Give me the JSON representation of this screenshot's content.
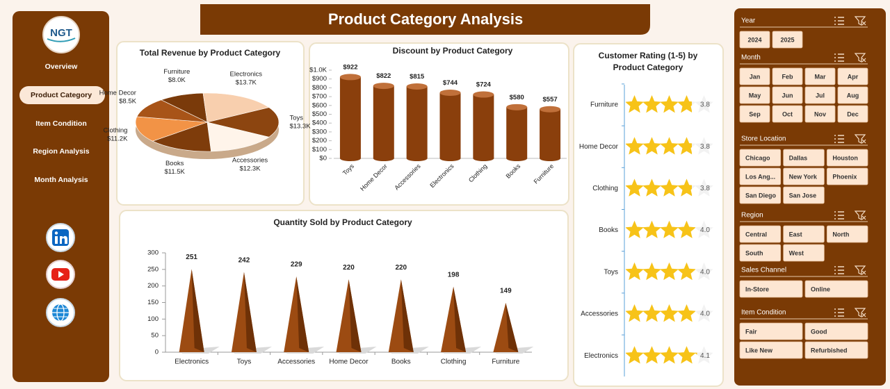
{
  "logo": "NGT",
  "nav": [
    "Overview",
    "Product Category",
    "Item Condition",
    "Region Analysis",
    "Month Analysis"
  ],
  "header": {
    "title": "Product Category Analysis"
  },
  "chart_data": [
    {
      "type": "pie",
      "title": "Total Revenue by Product Category",
      "categories": [
        "Furniture",
        "Electronics",
        "Toys",
        "Accessories",
        "Books",
        "Clothing",
        "Home Decor"
      ],
      "values": [
        8000,
        13700,
        13300,
        12300,
        11500,
        11200,
        8500
      ],
      "value_labels": [
        "$8.0K",
        "$13.7K",
        "$13.3K",
        "$12.3K",
        "$11.5K",
        "$11.2K",
        "$8.5K"
      ],
      "colors": [
        "#7a3a0a",
        "#f8cfae",
        "#8c4510",
        "#fff4ea",
        "#7e3c0b",
        "#f29346",
        "#a85418"
      ]
    },
    {
      "type": "bar",
      "title": "Discount by Product Category",
      "categories": [
        "Toys",
        "Home Decor",
        "Accessories",
        "Electronics",
        "Clothing",
        "Books",
        "Furniture"
      ],
      "values": [
        922,
        822,
        815,
        744,
        724,
        580,
        557
      ],
      "value_labels": [
        "$922",
        "$822",
        "$815",
        "$744",
        "$724",
        "$580",
        "$557"
      ],
      "color": "#8a3f0c",
      "ylim": [
        0,
        1000
      ],
      "yticks": [
        {
          "value": 0,
          "label": "$0"
        },
        {
          "value": 100,
          "label": "$100"
        },
        {
          "value": 200,
          "label": "$200"
        },
        {
          "value": 300,
          "label": "$300"
        },
        {
          "value": 400,
          "label": "$400"
        },
        {
          "value": 500,
          "label": "$500"
        },
        {
          "value": 600,
          "label": "$600"
        },
        {
          "value": 700,
          "label": "$700"
        },
        {
          "value": 800,
          "label": "$800"
        },
        {
          "value": 900,
          "label": "$900"
        },
        {
          "value": 1000,
          "label": "$1.0K"
        }
      ]
    },
    {
      "type": "stars",
      "title": "Customer Rating (1-5) by Product Category",
      "categories": [
        "Furniture",
        "Home Decor",
        "Clothing",
        "Books",
        "Toys",
        "Accessories",
        "Electronics"
      ],
      "values": [
        3.8,
        3.8,
        3.8,
        4.0,
        4.0,
        4.0,
        4.1
      ],
      "value_labels": [
        "3.8",
        "3.8",
        "3.8",
        "4.0",
        "4.0",
        "4.0",
        "4.1"
      ],
      "color": "#f7c318",
      "xlim": [
        0,
        5
      ]
    },
    {
      "type": "pyramid",
      "title": "Quantity Sold by Product Category",
      "categories": [
        "Electronics",
        "Toys",
        "Accessories",
        "Home Decor",
        "Books",
        "Clothing",
        "Furniture"
      ],
      "values": [
        251,
        242,
        229,
        220,
        220,
        198,
        149
      ],
      "color": "#9c4b12",
      "ylim": [
        0,
        300
      ],
      "yticks": [
        0,
        50,
        100,
        150,
        200,
        250,
        300
      ]
    }
  ],
  "slicers": [
    {
      "title": "Year",
      "items": [
        "2024",
        "2025"
      ]
    },
    {
      "title": "Month",
      "items": [
        "Jan",
        "Feb",
        "Mar",
        "Apr",
        "May",
        "Jun",
        "Jul",
        "Aug",
        "Sep",
        "Oct",
        "Nov",
        "Dec"
      ]
    },
    {
      "title": "Store Location",
      "items": [
        "Chicago",
        "Dallas",
        "Houston",
        "Los Ang...",
        "New York",
        "Phoenix",
        "San Diego",
        "San Jose"
      ]
    },
    {
      "title": "Region",
      "items": [
        "Central",
        "East",
        "North",
        "South",
        "West"
      ]
    },
    {
      "title": "Sales Channel",
      "items": [
        "In-Store",
        "Online"
      ]
    },
    {
      "title": "Item Condition",
      "items": [
        "Fair",
        "Good",
        "Like New",
        "Refurbished"
      ]
    }
  ]
}
